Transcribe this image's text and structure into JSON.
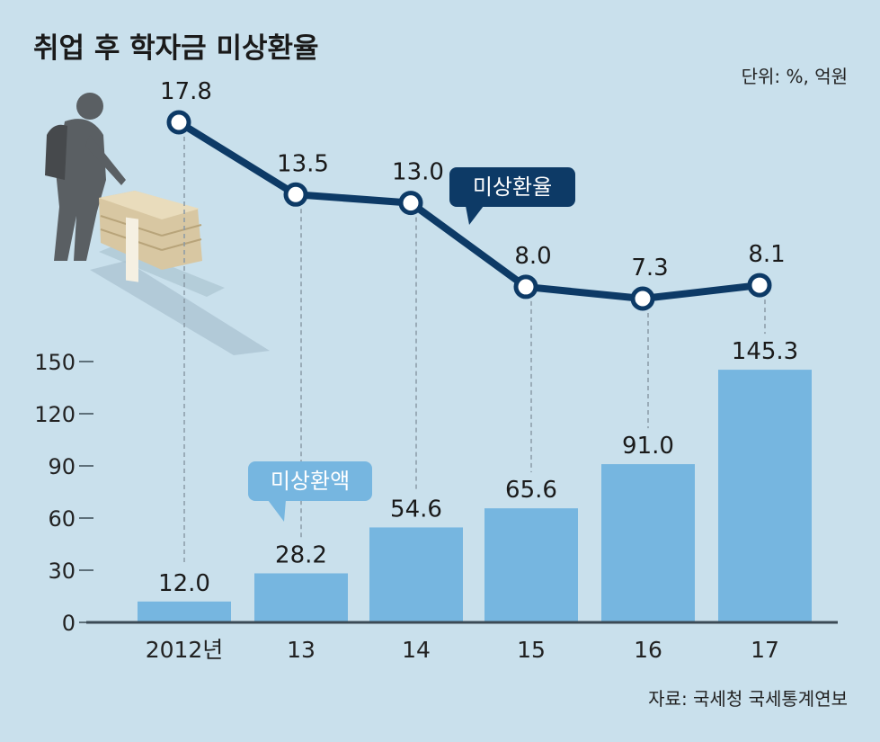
{
  "title": "취업 후 학자금 미상환율",
  "unit_note": "단위: %, 억원",
  "source": "자료: 국세청 국세통계연보",
  "colors": {
    "background": "#c9e0ec",
    "bar": "#76b6e0",
    "line": "#0d3a66",
    "marker_fill": "#ffffff",
    "rate_callout": "#0d3a66",
    "amount_callout": "#76b6e0",
    "guide": "#8a9aa6"
  },
  "callouts": {
    "rate": "미상환율",
    "amount": "미상환액"
  },
  "illustration": "person-pulling-money-cart-icon",
  "chart_data": {
    "type": "bar",
    "categories": [
      "2012년",
      "13",
      "14",
      "15",
      "16",
      "17"
    ],
    "series": [
      {
        "name": "미상환액",
        "type": "bar",
        "values": [
          12.0,
          28.2,
          54.6,
          65.6,
          91.0,
          145.3
        ],
        "labels": [
          "12.0",
          "28.2",
          "54.6",
          "65.6",
          "91.0",
          "145.3"
        ]
      },
      {
        "name": "미상환율",
        "type": "line",
        "values": [
          17.8,
          13.5,
          13.0,
          8.0,
          7.3,
          8.1
        ],
        "labels": [
          "17.8",
          "13.5",
          "13.0",
          "8.0",
          "7.3",
          "8.1"
        ]
      }
    ],
    "y_ticks": [
      "0",
      "30",
      "60",
      "90",
      "120",
      "150"
    ],
    "ylim": [
      0,
      150
    ],
    "y2lim": [
      7.3,
      17.8
    ],
    "grid": false,
    "legend": "none"
  }
}
